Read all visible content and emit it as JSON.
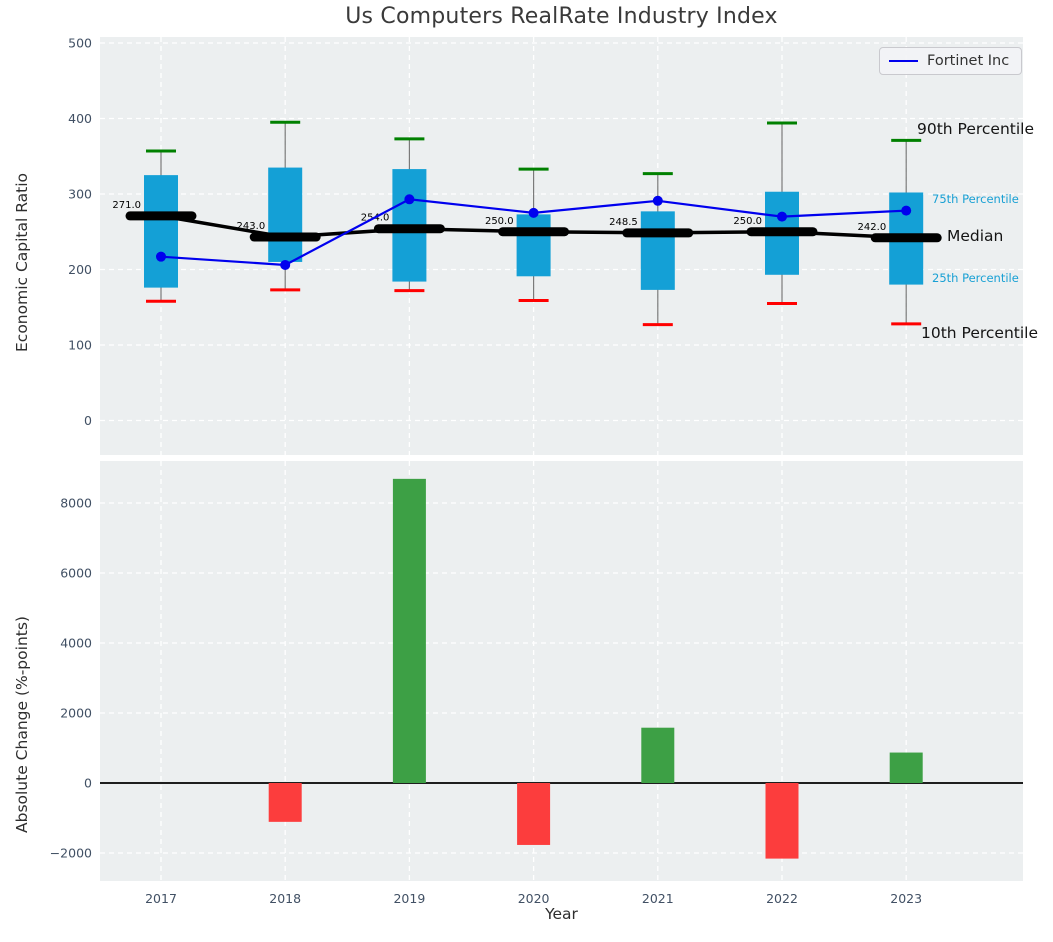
{
  "title": "Us Computers RealRate Industry Index",
  "legend": {
    "series_label": "Fortinet Inc"
  },
  "axes": {
    "top": {
      "ylabel": "Economic Capital Ratio",
      "yticks": [
        0,
        100,
        200,
        300,
        400,
        500
      ]
    },
    "bottom": {
      "ylabel": "Absolute Change (%-points)",
      "xlabel": "Year",
      "yticks": [
        -2000,
        0,
        2000,
        4000,
        6000,
        8000
      ],
      "xticks": [
        "2017",
        "2018",
        "2019",
        "2020",
        "2021",
        "2022",
        "2023"
      ]
    }
  },
  "annotations": {
    "p90": "90th Percentile",
    "p75": "75th Percentile",
    "median": "Median",
    "p25": "25th Percentile",
    "p10": "10th Percentile"
  },
  "colors": {
    "box_fill": "#14a0d6",
    "whisker": "#7a7a7a",
    "cap_90": "#008000",
    "cap_10": "#ff0000",
    "median_line": "#000000",
    "fortinet_line": "#0000ee",
    "bar_positive": "#3da045",
    "bar_negative": "#fc3d3d",
    "plot_bg": "#eceff0",
    "grid": "#ffffff",
    "tick_text": "#415064",
    "annotation_small": "#18a0d4"
  },
  "chart_data": [
    {
      "type": "boxplot+line",
      "title": "Us Computers RealRate Industry Index",
      "ylabel": "Economic Capital Ratio",
      "categories": [
        "2017",
        "2018",
        "2019",
        "2020",
        "2021",
        "2022",
        "2023"
      ],
      "ylim": [
        -45,
        507
      ],
      "grid": true,
      "legend_position": "upper right",
      "series": [
        {
          "name": "90th Percentile",
          "values": [
            357,
            395,
            373,
            333,
            327,
            394,
            371
          ]
        },
        {
          "name": "75th Percentile",
          "values": [
            325,
            335,
            333,
            273,
            277,
            303,
            302
          ]
        },
        {
          "name": "Median",
          "values": [
            271.0,
            243.0,
            254.0,
            250.0,
            248.5,
            250.0,
            242.0
          ]
        },
        {
          "name": "25th Percentile",
          "values": [
            176,
            210,
            184,
            191,
            173,
            193,
            180
          ]
        },
        {
          "name": "10th Percentile",
          "values": [
            158,
            173,
            172,
            159,
            127,
            155,
            128
          ]
        },
        {
          "name": "Fortinet Inc",
          "values": [
            217,
            206,
            293,
            275,
            291,
            270,
            278
          ]
        }
      ],
      "median_labels": [
        "271.0",
        "243.0",
        "254.0",
        "250.0",
        "248.5",
        "250.0",
        "242.0"
      ]
    },
    {
      "type": "bar",
      "ylabel": "Absolute Change (%-points)",
      "xlabel": "Year",
      "categories": [
        "2017",
        "2018",
        "2019",
        "2020",
        "2021",
        "2022",
        "2023"
      ],
      "values": [
        null,
        -1110,
        8690,
        -1770,
        1580,
        -2160,
        870
      ],
      "ylim": [
        -2800,
        9200
      ],
      "grid": true
    }
  ]
}
